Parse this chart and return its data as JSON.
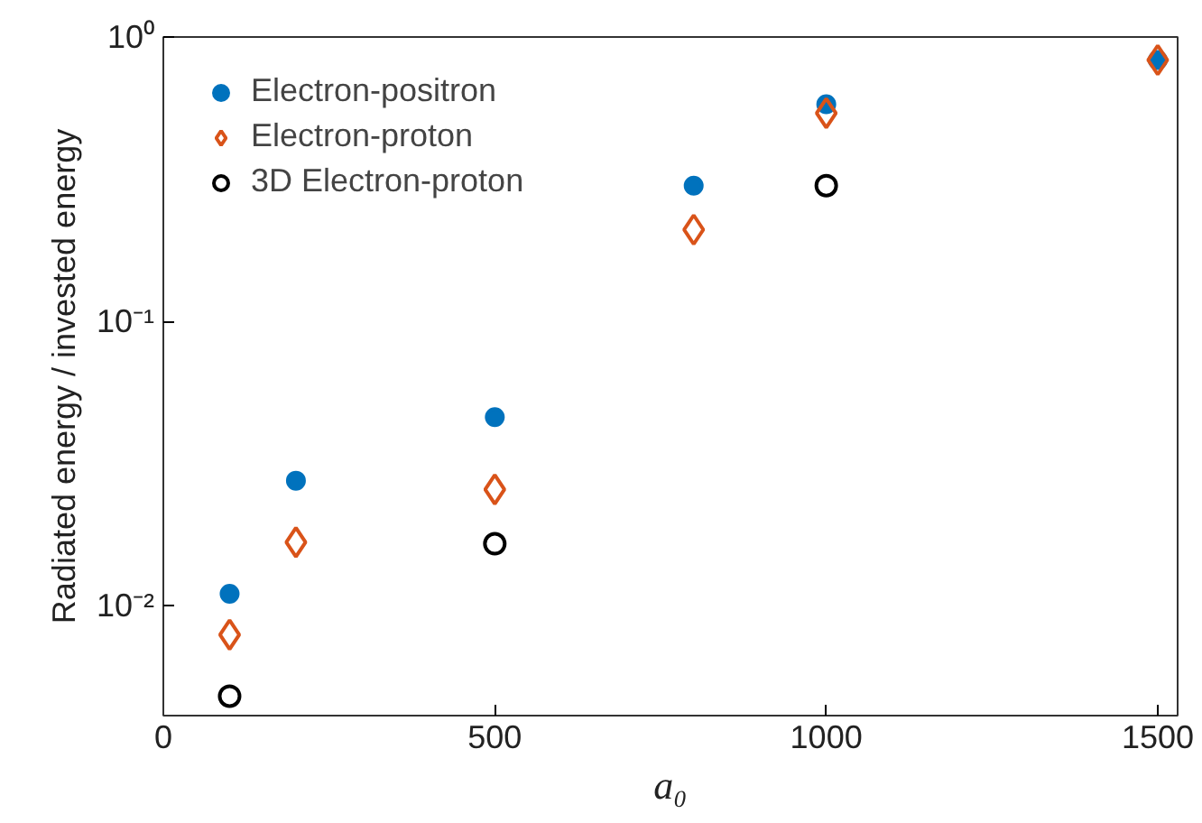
{
  "chart_data": {
    "type": "scatter",
    "xlabel": "a₀",
    "ylabel": "Radiated energy / invested energy",
    "log": "y",
    "xlim": [
      0,
      1530
    ],
    "ylim": [
      0.0041,
      1
    ],
    "xticks": [
      0,
      500,
      1000,
      1500
    ],
    "yticks": [
      {
        "value": 0.01,
        "label": "10⁻²"
      },
      {
        "value": 0.1,
        "label": "10⁻¹"
      },
      {
        "value": 1,
        "label": "10⁰"
      }
    ],
    "grid": false,
    "legend": "top left",
    "series": [
      {
        "name": "Electron-positron",
        "color": "#0072bd",
        "marker": "circle",
        "x": [
          100,
          200,
          500,
          800,
          1000,
          1500
        ],
        "values": [
          0.011,
          0.0275,
          0.046,
          0.3,
          0.58,
          0.83
        ]
      },
      {
        "name": "Electron-proton",
        "color": "#d95319",
        "marker": "diamond",
        "x": [
          100,
          200,
          500,
          800,
          1000,
          1500
        ],
        "values": [
          0.0079,
          0.0167,
          0.0256,
          0.21,
          0.54,
          0.83
        ]
      },
      {
        "name": "3D Electron-proton",
        "color": "#000000",
        "marker": "circle",
        "x": [
          100,
          500,
          1000
        ],
        "values": [
          0.0048,
          0.0165,
          0.3
        ]
      }
    ]
  }
}
